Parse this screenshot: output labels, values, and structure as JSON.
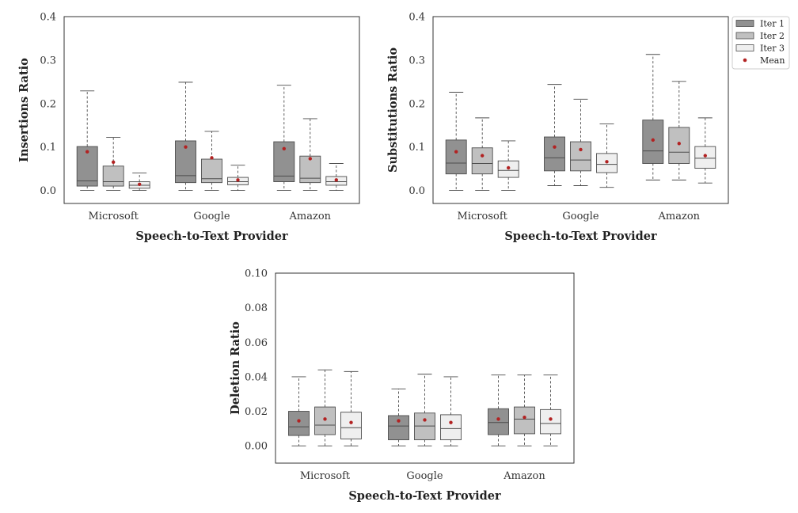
{
  "colors": {
    "iter1": "#919191",
    "iter2": "#c0c0c0",
    "iter3": "#efefef",
    "mean": "#b22222",
    "edge": "#4d4d4d",
    "frame": "#333333"
  },
  "legend": {
    "entries": [
      "Iter 1",
      "Iter 2",
      "Iter 3",
      "Mean"
    ]
  },
  "chart_data": [
    {
      "id": "insertions",
      "type": "box",
      "title": "",
      "xlabel": "Speech-to-Text Provider",
      "ylabel": "Insertions Ratio",
      "categories": [
        "Microsoft",
        "Google",
        "Amazon"
      ],
      "ylim": [
        -0.03,
        0.4
      ],
      "yticks": [
        0.0,
        0.1,
        0.2,
        0.3,
        0.4
      ],
      "ytick_labels": [
        "0.0",
        "0.1",
        "0.2",
        "0.3",
        "0.4"
      ],
      "series": [
        {
          "name": "Iter 1",
          "boxes": [
            {
              "whislo": 0.0,
              "q1": 0.01,
              "med": 0.022,
              "q3": 0.101,
              "whishi": 0.229,
              "mean": 0.089
            },
            {
              "whislo": 0.0,
              "q1": 0.018,
              "med": 0.034,
              "q3": 0.114,
              "whishi": 0.249,
              "mean": 0.1
            },
            {
              "whislo": 0.0,
              "q1": 0.02,
              "med": 0.033,
              "q3": 0.112,
              "whishi": 0.242,
              "mean": 0.096
            }
          ]
        },
        {
          "name": "Iter 2",
          "boxes": [
            {
              "whislo": 0.0,
              "q1": 0.01,
              "med": 0.02,
              "q3": 0.056,
              "whishi": 0.122,
              "mean": 0.065
            },
            {
              "whislo": 0.0,
              "q1": 0.018,
              "med": 0.027,
              "q3": 0.072,
              "whishi": 0.136,
              "mean": 0.075
            },
            {
              "whislo": 0.0,
              "q1": 0.018,
              "med": 0.028,
              "q3": 0.079,
              "whishi": 0.165,
              "mean": 0.073
            }
          ]
        },
        {
          "name": "Iter 3",
          "boxes": [
            {
              "whislo": 0.0,
              "q1": 0.005,
              "med": 0.012,
              "q3": 0.02,
              "whishi": 0.04,
              "mean": 0.014
            },
            {
              "whislo": 0.0,
              "q1": 0.013,
              "med": 0.02,
              "q3": 0.03,
              "whishi": 0.058,
              "mean": 0.024
            },
            {
              "whislo": 0.0,
              "q1": 0.012,
              "med": 0.02,
              "q3": 0.032,
              "whishi": 0.062,
              "mean": 0.024
            }
          ]
        }
      ]
    },
    {
      "id": "substitutions",
      "type": "box",
      "title": "",
      "xlabel": "Speech-to-Text Provider",
      "ylabel": "Substitutions Ratio",
      "categories": [
        "Microsoft",
        "Google",
        "Amazon"
      ],
      "ylim": [
        -0.03,
        0.4
      ],
      "yticks": [
        0.0,
        0.1,
        0.2,
        0.3,
        0.4
      ],
      "ytick_labels": [
        "0.0",
        "0.1",
        "0.2",
        "0.3",
        "0.4"
      ],
      "series": [
        {
          "name": "Iter 1",
          "boxes": [
            {
              "whislo": 0.0,
              "q1": 0.038,
              "med": 0.063,
              "q3": 0.116,
              "whishi": 0.226,
              "mean": 0.089
            },
            {
              "whislo": 0.011,
              "q1": 0.045,
              "med": 0.075,
              "q3": 0.123,
              "whishi": 0.244,
              "mean": 0.1
            },
            {
              "whislo": 0.024,
              "q1": 0.062,
              "med": 0.091,
              "q3": 0.162,
              "whishi": 0.313,
              "mean": 0.116
            }
          ]
        },
        {
          "name": "Iter 2",
          "boxes": [
            {
              "whislo": 0.0,
              "q1": 0.038,
              "med": 0.062,
              "q3": 0.098,
              "whishi": 0.167,
              "mean": 0.08
            },
            {
              "whislo": 0.011,
              "q1": 0.045,
              "med": 0.07,
              "q3": 0.112,
              "whishi": 0.21,
              "mean": 0.094
            },
            {
              "whislo": 0.024,
              "q1": 0.062,
              "med": 0.088,
              "q3": 0.145,
              "whishi": 0.251,
              "mean": 0.108
            }
          ]
        },
        {
          "name": "Iter 3",
          "boxes": [
            {
              "whislo": 0.0,
              "q1": 0.03,
              "med": 0.046,
              "q3": 0.068,
              "whishi": 0.114,
              "mean": 0.052
            },
            {
              "whislo": 0.007,
              "q1": 0.041,
              "med": 0.06,
              "q3": 0.085,
              "whishi": 0.153,
              "mean": 0.066
            },
            {
              "whislo": 0.017,
              "q1": 0.051,
              "med": 0.074,
              "q3": 0.101,
              "whishi": 0.167,
              "mean": 0.08
            }
          ]
        }
      ]
    },
    {
      "id": "deletions",
      "type": "box",
      "title": "",
      "xlabel": "Speech-to-Text Provider",
      "ylabel": "Deletion Ratio",
      "categories": [
        "Microsoft",
        "Google",
        "Amazon"
      ],
      "ylim": [
        -0.01,
        0.1
      ],
      "yticks": [
        0.0,
        0.02,
        0.04,
        0.06,
        0.08,
        0.1
      ],
      "ytick_labels": [
        "0.00",
        "0.02",
        "0.04",
        "0.06",
        "0.08",
        "0.10"
      ],
      "series": [
        {
          "name": "Iter 1",
          "boxes": [
            {
              "whislo": 0.0,
              "q1": 0.006,
              "med": 0.011,
              "q3": 0.02,
              "whishi": 0.04,
              "mean": 0.0145
            },
            {
              "whislo": 0.0,
              "q1": 0.0035,
              "med": 0.0115,
              "q3": 0.0175,
              "whishi": 0.033,
              "mean": 0.0145
            },
            {
              "whislo": 0.0,
              "q1": 0.0065,
              "med": 0.0135,
              "q3": 0.0215,
              "whishi": 0.041,
              "mean": 0.0155
            }
          ]
        },
        {
          "name": "Iter 2",
          "boxes": [
            {
              "whislo": 0.0,
              "q1": 0.0065,
              "med": 0.012,
              "q3": 0.0225,
              "whishi": 0.044,
              "mean": 0.0155
            },
            {
              "whislo": 0.0,
              "q1": 0.0035,
              "med": 0.0115,
              "q3": 0.019,
              "whishi": 0.0415,
              "mean": 0.015
            },
            {
              "whislo": 0.0,
              "q1": 0.007,
              "med": 0.0155,
              "q3": 0.0225,
              "whishi": 0.041,
              "mean": 0.0165
            }
          ]
        },
        {
          "name": "Iter 3",
          "boxes": [
            {
              "whislo": 0.0,
              "q1": 0.004,
              "med": 0.0105,
              "q3": 0.0195,
              "whishi": 0.043,
              "mean": 0.0135
            },
            {
              "whislo": 0.0,
              "q1": 0.0035,
              "med": 0.01,
              "q3": 0.018,
              "whishi": 0.04,
              "mean": 0.0135
            },
            {
              "whislo": 0.0,
              "q1": 0.007,
              "med": 0.013,
              "q3": 0.021,
              "whishi": 0.041,
              "mean": 0.0155
            }
          ]
        }
      ]
    }
  ]
}
